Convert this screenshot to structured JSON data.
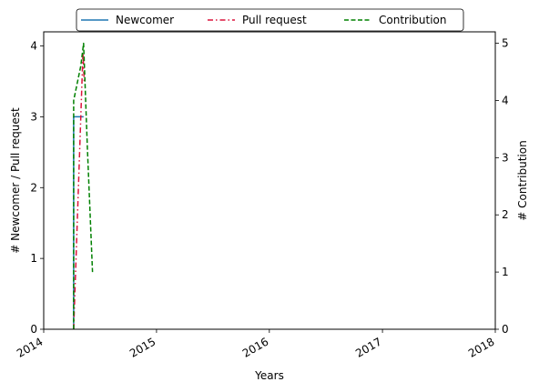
{
  "chart_data": {
    "type": "line",
    "xlabel": "Years",
    "ylabel_left": "# Newcomer / Pull request",
    "ylabel_right": "# Contribution",
    "xlim": [
      "2014-01-01",
      "2018-01-01"
    ],
    "x_ticks": [
      "2014",
      "2015",
      "2016",
      "2017",
      "2018"
    ],
    "ylim_left": [
      0,
      4.2
    ],
    "y_ticks_left": [
      "0",
      "1",
      "2",
      "3",
      "4"
    ],
    "ylim_right": [
      0,
      5.2
    ],
    "y_ticks_right": [
      "0",
      "1",
      "2",
      "3",
      "4",
      "5"
    ],
    "grid": false,
    "legend_position": "top-center",
    "series": [
      {
        "name": "Newcomer",
        "axis": "left",
        "style": "solid",
        "color": "#1f77b4",
        "points": [
          {
            "x": "2014-04-08",
            "y": 0
          },
          {
            "x": "2014-04-08",
            "y": 3
          },
          {
            "x": "2014-05-10",
            "y": 3
          }
        ]
      },
      {
        "name": "Pull request",
        "axis": "left",
        "style": "dashdot",
        "color": "#dc143c",
        "points": [
          {
            "x": "2014-04-08",
            "y": 0
          },
          {
            "x": "2014-05-08",
            "y": 3.9
          },
          {
            "x": "2014-05-12",
            "y": 3.5
          }
        ]
      },
      {
        "name": "Contribution",
        "axis": "right",
        "style": "dashed",
        "color": "#008000",
        "points": [
          {
            "x": "2014-04-08",
            "y": 0
          },
          {
            "x": "2014-04-08",
            "y": 4
          },
          {
            "x": "2014-05-01",
            "y": 4.6
          },
          {
            "x": "2014-05-10",
            "y": 5
          },
          {
            "x": "2014-05-22",
            "y": 3.2
          },
          {
            "x": "2014-06-08",
            "y": 1
          }
        ]
      }
    ]
  }
}
